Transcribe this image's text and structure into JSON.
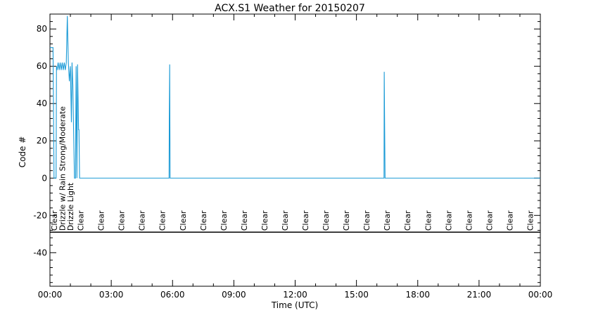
{
  "chart_data": {
    "type": "line",
    "title": "ACX.S1 Weather for 20150207",
    "xlabel": "Time (UTC)",
    "ylabel": "Code #",
    "xlim": [
      0,
      24
    ],
    "ylim": [
      -58,
      88
    ],
    "grid": false,
    "x_ticks": [
      {
        "value": 0,
        "label": "00:00"
      },
      {
        "value": 3,
        "label": "03:00"
      },
      {
        "value": 6,
        "label": "06:00"
      },
      {
        "value": 9,
        "label": "09:00"
      },
      {
        "value": 12,
        "label": "12:00"
      },
      {
        "value": 15,
        "label": "15:00"
      },
      {
        "value": 18,
        "label": "18:00"
      },
      {
        "value": 21,
        "label": "21:00"
      },
      {
        "value": 24,
        "label": "00:00"
      }
    ],
    "y_ticks": [
      {
        "value": -40,
        "label": "-40"
      },
      {
        "value": -20,
        "label": "-20"
      },
      {
        "value": 0,
        "label": "0"
      },
      {
        "value": 20,
        "label": "20"
      },
      {
        "value": 40,
        "label": "40"
      },
      {
        "value": 60,
        "label": "60"
      },
      {
        "value": 80,
        "label": "80"
      }
    ],
    "separator_y": -29,
    "series": [
      {
        "color": "#1a9ad6",
        "points": [
          [
            0.0,
            70
          ],
          [
            0.15,
            70
          ],
          [
            0.2,
            0
          ],
          [
            0.3,
            0
          ],
          [
            0.32,
            60
          ],
          [
            0.35,
            58
          ],
          [
            0.4,
            62
          ],
          [
            0.45,
            58
          ],
          [
            0.5,
            62
          ],
          [
            0.55,
            58
          ],
          [
            0.6,
            62
          ],
          [
            0.65,
            58
          ],
          [
            0.7,
            62
          ],
          [
            0.75,
            58
          ],
          [
            0.8,
            62
          ],
          [
            0.85,
            87
          ],
          [
            0.88,
            72
          ],
          [
            0.9,
            62
          ],
          [
            0.95,
            52
          ],
          [
            1.0,
            60
          ],
          [
            1.05,
            30
          ],
          [
            1.08,
            62
          ],
          [
            1.12,
            50
          ],
          [
            1.15,
            30
          ],
          [
            1.2,
            0
          ],
          [
            1.25,
            0
          ],
          [
            1.28,
            60
          ],
          [
            1.32,
            0
          ],
          [
            1.35,
            61
          ],
          [
            1.4,
            26
          ],
          [
            1.42,
            26
          ],
          [
            1.45,
            0
          ],
          [
            5.83,
            0
          ],
          [
            5.84,
            30
          ],
          [
            5.86,
            61
          ],
          [
            5.88,
            0
          ],
          [
            16.35,
            0
          ],
          [
            16.36,
            57
          ],
          [
            16.38,
            28
          ],
          [
            16.4,
            0
          ],
          [
            24.0,
            0
          ]
        ]
      }
    ],
    "condition_labels": [
      {
        "x": 0.2,
        "text": "Clear"
      },
      {
        "x": 0.6,
        "text": "Drizzle w/ Rain Strong/Moderate"
      },
      {
        "x": 1.0,
        "text": "Drizzle Light"
      },
      {
        "x": 1.5,
        "text": "Clear"
      },
      {
        "x": 2.5,
        "text": "Clear"
      },
      {
        "x": 3.5,
        "text": "Clear"
      },
      {
        "x": 4.5,
        "text": "Clear"
      },
      {
        "x": 5.5,
        "text": "Clear"
      },
      {
        "x": 6.5,
        "text": "Clear"
      },
      {
        "x": 7.5,
        "text": "Clear"
      },
      {
        "x": 8.5,
        "text": "Clear"
      },
      {
        "x": 9.5,
        "text": "Clear"
      },
      {
        "x": 10.5,
        "text": "Clear"
      },
      {
        "x": 11.5,
        "text": "Clear"
      },
      {
        "x": 12.5,
        "text": "Clear"
      },
      {
        "x": 13.5,
        "text": "Clear"
      },
      {
        "x": 14.5,
        "text": "Clear"
      },
      {
        "x": 15.5,
        "text": "Clear"
      },
      {
        "x": 16.5,
        "text": "Clear"
      },
      {
        "x": 17.5,
        "text": "Clear"
      },
      {
        "x": 18.5,
        "text": "Clear"
      },
      {
        "x": 19.5,
        "text": "Clear"
      },
      {
        "x": 20.5,
        "text": "Clear"
      },
      {
        "x": 21.5,
        "text": "Clear"
      },
      {
        "x": 22.5,
        "text": "Clear"
      },
      {
        "x": 23.5,
        "text": "Clear"
      }
    ]
  }
}
